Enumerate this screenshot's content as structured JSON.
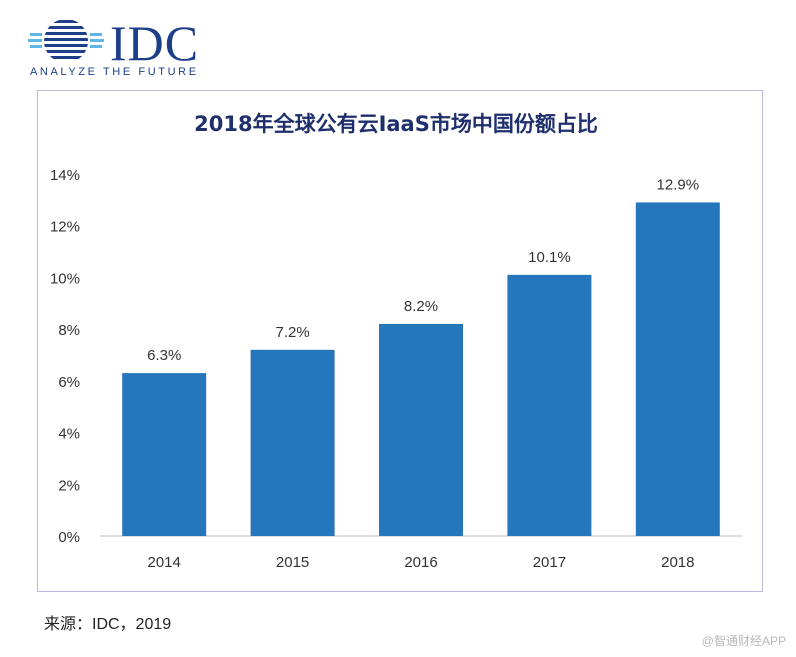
{
  "logo": {
    "name": "IDC",
    "tagline": "ANALYZE THE FUTURE"
  },
  "chart_data": {
    "type": "bar",
    "title": "2018年全球公有云IaaS市场中国份额占比",
    "categories": [
      "2014",
      "2015",
      "2016",
      "2017",
      "2018"
    ],
    "values": [
      6.3,
      7.2,
      8.2,
      10.1,
      12.9
    ],
    "data_labels": [
      "6.3%",
      "7.2%",
      "8.2%",
      "10.1%",
      "12.9%"
    ],
    "y_ticks": [
      0,
      2,
      4,
      6,
      8,
      10,
      12,
      14
    ],
    "y_tick_labels": [
      "0%",
      "2%",
      "4%",
      "6%",
      "8%",
      "10%",
      "12%",
      "14%"
    ],
    "ylim": [
      0,
      14
    ],
    "xlabel": "",
    "ylabel": "",
    "grid": false,
    "legend": "none",
    "bar_color": "#2676bc"
  },
  "source": "来源：IDC，2019",
  "watermark": "@智通财经APP"
}
